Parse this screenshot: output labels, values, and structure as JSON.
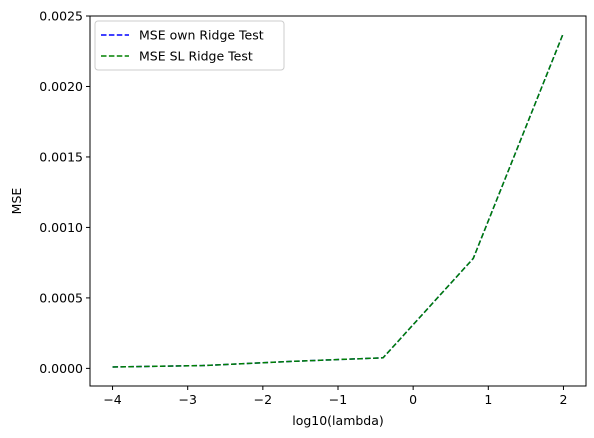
{
  "chart_data": {
    "type": "line",
    "xlabel": "log10(lambda)",
    "ylabel": "MSE",
    "xlim": [
      -4.3,
      2.3
    ],
    "ylim": [
      -0.000125,
      0.0025
    ],
    "xticks": [
      -4,
      -3,
      -2,
      -1,
      0,
      1,
      2
    ],
    "xtick_labels": [
      "−4",
      "−3",
      "−2",
      "−1",
      "0",
      "1",
      "2"
    ],
    "yticks": [
      0.0,
      0.0005,
      0.001,
      0.0015,
      0.002,
      0.0025
    ],
    "ytick_labels": [
      "0.0000",
      "0.0005",
      "0.0010",
      "0.0015",
      "0.0020",
      "0.0025"
    ],
    "grid": false,
    "legend_position": "top-left",
    "x": [
      -4.0,
      -2.8,
      -1.6,
      -0.4,
      0.8,
      2.0
    ],
    "series": [
      {
        "name": "MSE own Ridge Test",
        "color": "#0000ff",
        "line_style": "dashed",
        "values": [
          1e-05,
          2e-05,
          5e-05,
          7.5e-05,
          0.00078,
          0.00238
        ]
      },
      {
        "name": "MSE SL Ridge Test",
        "color": "#008000",
        "line_style": "dashed",
        "values": [
          1e-05,
          2e-05,
          5e-05,
          7.5e-05,
          0.00078,
          0.00238
        ]
      }
    ]
  }
}
